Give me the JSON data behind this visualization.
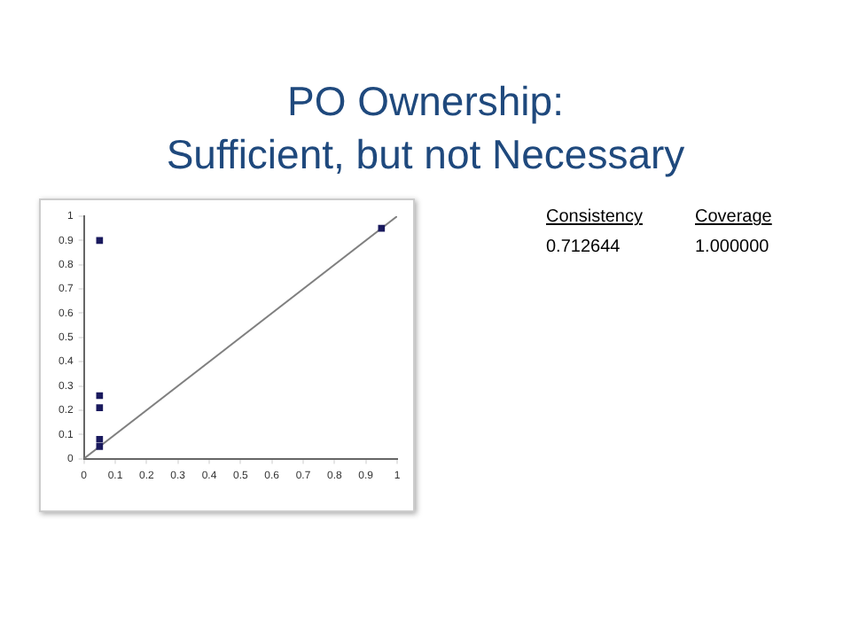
{
  "chart_data": {
    "type": "scatter",
    "title": "PO Ownership:\nSufficient, but not Necessary",
    "annotations": [
      "Consistency",
      "Coverage",
      "0.712644",
      "1.000000"
    ],
    "xlim": [
      0,
      1
    ],
    "xticks": [
      0,
      0.1,
      0.2,
      0.3,
      0.4,
      0.5,
      0.6,
      0.7,
      0.8,
      0.9,
      1
    ],
    "ylim": [
      0,
      1
    ],
    "yticks": [
      0,
      0.1,
      0.2,
      0.3,
      0.4,
      0.5,
      0.6,
      0.7,
      0.8,
      0.9,
      1
    ],
    "grid": false,
    "legend": false,
    "marker": "square",
    "series": [
      {
        "color": "#1a1a5e",
        "x": [
          0.05,
          0.05,
          0.05,
          0.05,
          0.05,
          0.95
        ],
        "values": [
          0.9,
          0.26,
          0.21,
          0.08,
          0.05,
          0.95
        ]
      },
      {
        "type": "line",
        "color": "#808080",
        "x": [
          0,
          1
        ],
        "values": [
          0,
          1
        ],
        "marker": "none"
      }
    ]
  }
}
